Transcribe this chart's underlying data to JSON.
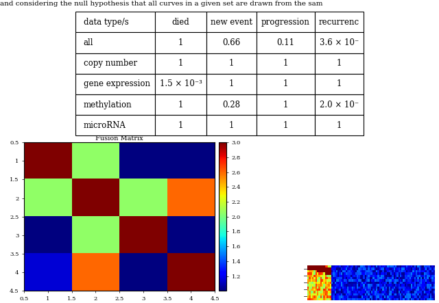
{
  "title_text": "and considering the null hypothesis that all curves in a given set are drawn from the sam",
  "table_headers": [
    "data type/s",
    "died",
    "new event",
    "progression",
    "recurrenc"
  ],
  "table_rows": [
    [
      "all",
      "1",
      "0.66",
      "0.11",
      "3.6 × 10⁻"
    ],
    [
      "copy number",
      "1",
      "1",
      "1",
      "1"
    ],
    [
      "gene expression",
      "1.5 × 10⁻³",
      "1",
      "1",
      "1"
    ],
    [
      "methylation",
      "1",
      "0.28",
      "1",
      "2.0 × 10⁻"
    ],
    [
      "microRNA",
      "1",
      "1",
      "1",
      "1"
    ]
  ],
  "matrix_title": "Fusion Matrix",
  "matrix_data": [
    [
      3.0,
      2.05,
      1.0,
      1.0
    ],
    [
      2.05,
      3.0,
      2.05,
      2.6
    ],
    [
      1.0,
      2.05,
      3.0,
      1.0
    ],
    [
      1.15,
      2.6,
      1.0,
      3.0
    ]
  ],
  "colormap": "jet",
  "clim": [
    1.0,
    3.0
  ],
  "colorbar_ticks": [
    1.2,
    1.4,
    1.6,
    1.8,
    2.0,
    2.2,
    2.4,
    2.6,
    2.8,
    3.0
  ],
  "xticks": [
    0.5,
    1,
    1.5,
    2,
    2.5,
    3,
    3.5,
    4,
    4.5
  ],
  "yticks": [
    0.5,
    1,
    1.5,
    2,
    2.5,
    3,
    3.5,
    4,
    4.5
  ],
  "xlim": [
    0.5,
    4.5
  ],
  "ylim_top": 0.5,
  "ylim_bottom": 4.5,
  "background_color": "white",
  "table_font_size": 8.5,
  "title_font_size": 7,
  "tick_font_size": 6,
  "cbar_font_size": 6
}
